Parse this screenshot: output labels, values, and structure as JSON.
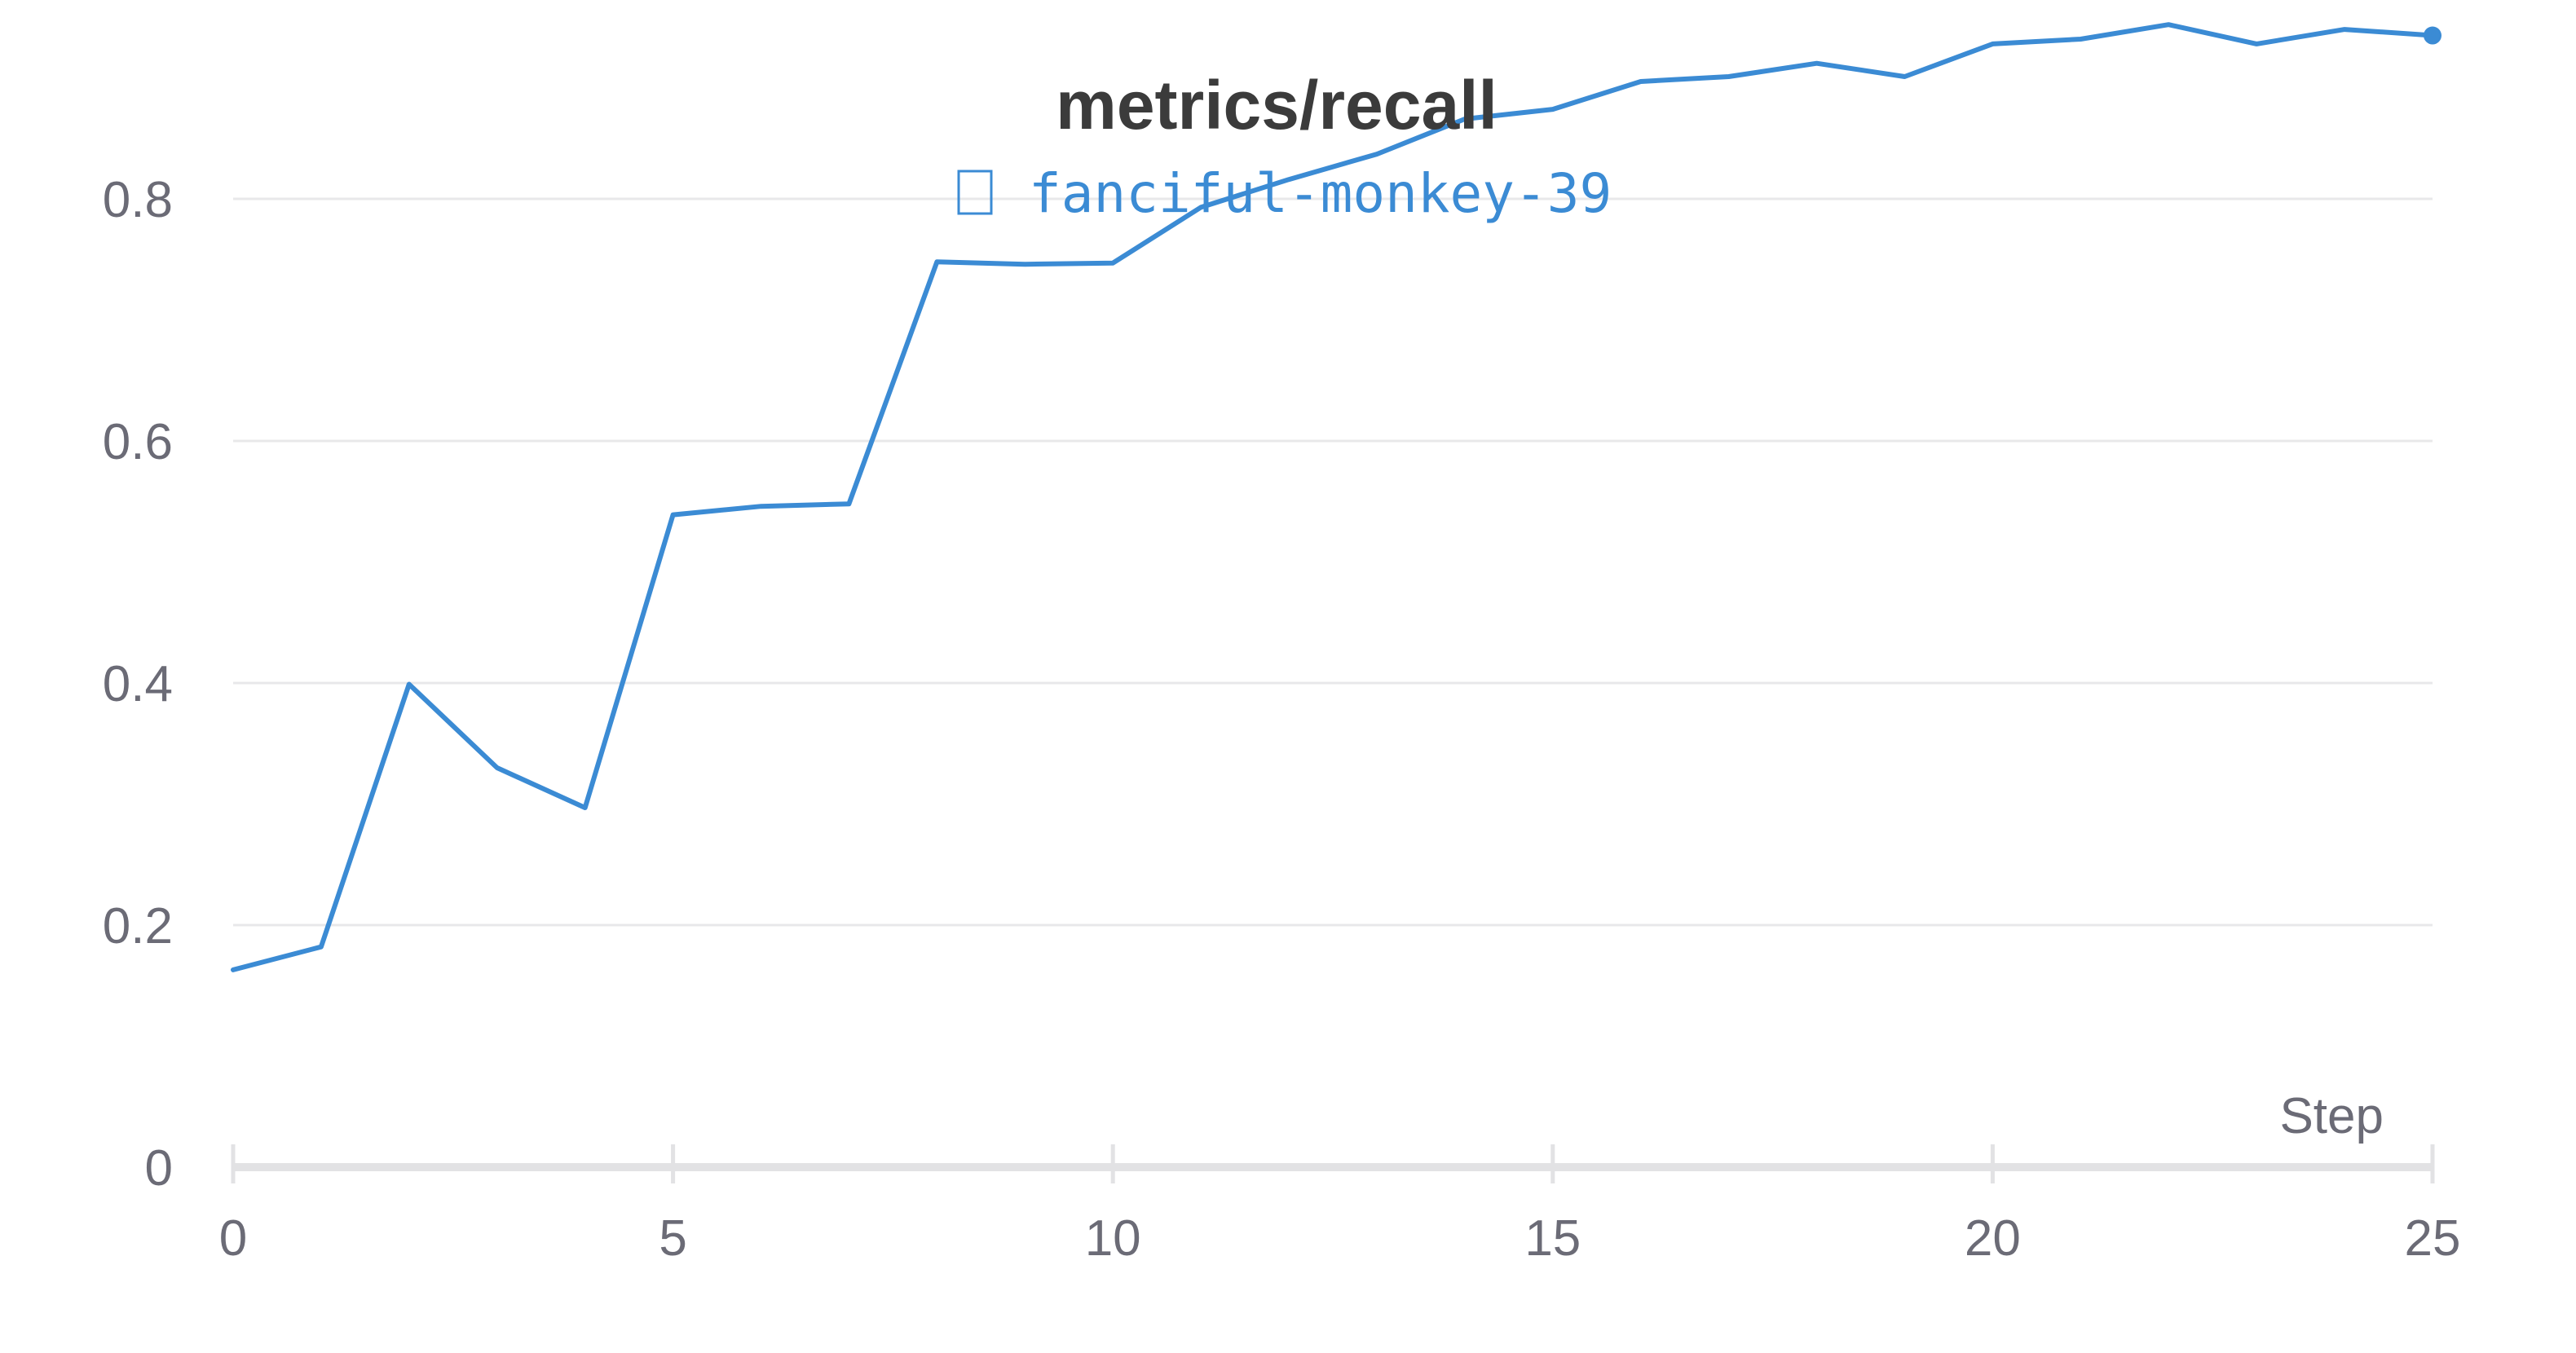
{
  "chart_data": {
    "type": "line",
    "title": "metrics/recall",
    "xlabel": "Step",
    "ylabel": "",
    "xlim": [
      0,
      25
    ],
    "ylim": [
      0,
      1.0
    ],
    "xticks": [
      "0",
      "5",
      "10",
      "15",
      "20",
      "25"
    ],
    "yticks": [
      "0",
      "0.2",
      "0.4",
      "0.6",
      "0.8"
    ],
    "grid": true,
    "legend_position": "top-center",
    "series": [
      {
        "name": "fanciful-monkey-39",
        "color": "#3b8bd4",
        "x": [
          0,
          1,
          2,
          3,
          4,
          5,
          6,
          7,
          8,
          9,
          10,
          11,
          12,
          13,
          14,
          15,
          16,
          17,
          18,
          19,
          20,
          21,
          22,
          23,
          24,
          25
        ],
        "y": [
          0.163,
          0.182,
          0.399,
          0.33,
          0.297,
          0.539,
          0.546,
          0.548,
          0.748,
          0.746,
          0.747,
          0.793,
          0.816,
          0.837,
          0.866,
          0.874,
          0.897,
          0.901,
          0.912,
          0.901,
          0.928,
          0.932,
          0.944,
          0.928,
          0.94,
          0.935
        ]
      }
    ]
  }
}
